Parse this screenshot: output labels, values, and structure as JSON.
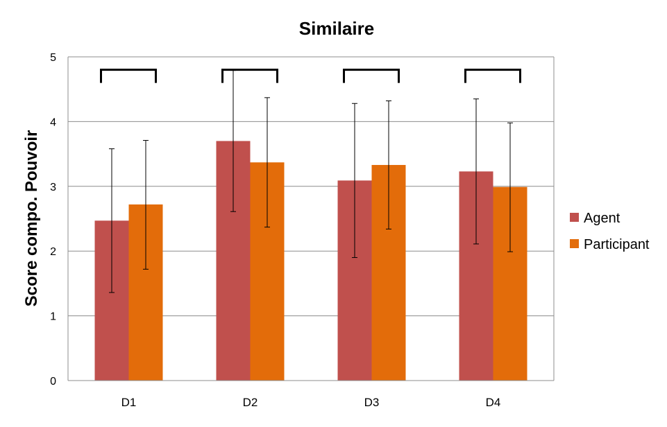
{
  "chart_data": {
    "type": "bar",
    "title": "Similaire",
    "xlabel": "",
    "ylabel": "Score compo. Pouvoir",
    "ylim": [
      0,
      5
    ],
    "yticks": [
      0,
      1,
      2,
      3,
      4,
      5
    ],
    "grid": true,
    "legend_position": "right",
    "categories": [
      "D1",
      "D2",
      "D3",
      "D4"
    ],
    "series": [
      {
        "name": "Agent",
        "color": "#C0504D",
        "values": [
          2.47,
          3.7,
          3.09,
          3.23
        ],
        "error_low": [
          1.36,
          2.61,
          1.9,
          2.11
        ],
        "error_high": [
          3.58,
          4.79,
          4.28,
          4.35
        ]
      },
      {
        "name": "Participant",
        "color": "#E36C0A",
        "values": [
          2.72,
          3.37,
          3.33,
          2.99
        ],
        "error_low": [
          1.72,
          2.37,
          2.34,
          1.99
        ],
        "error_high": [
          3.71,
          4.37,
          4.32,
          3.98
        ]
      }
    ],
    "annotations": {
      "type": "comparison-brackets",
      "count": 4,
      "level": 4.8
    }
  }
}
